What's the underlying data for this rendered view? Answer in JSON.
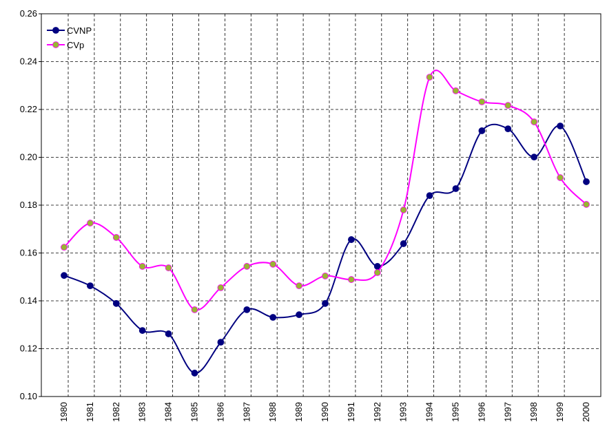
{
  "chart_data": {
    "type": "line",
    "categories": [
      "1980",
      "1981",
      "1982",
      "1983",
      "1984",
      "1985",
      "1986",
      "1987",
      "1988",
      "1989",
      "1990",
      "1991",
      "1992",
      "1993",
      "1994",
      "1995",
      "1996",
      "1997",
      "1998",
      "1999",
      "2000"
    ],
    "series": [
      {
        "name": "CVNP",
        "color": "#000080",
        "marker_color": "#000080",
        "values": [
          0.1506,
          0.1463,
          0.1389,
          0.1276,
          0.1262,
          0.1098,
          0.1227,
          0.1363,
          0.1331,
          0.1342,
          0.1389,
          0.1656,
          0.1544,
          0.1639,
          0.184,
          0.1869,
          0.2111,
          0.2119,
          0.2001,
          0.2131,
          0.1898
        ]
      },
      {
        "name": "CVp",
        "color": "#ff00ff",
        "marker_color": "#99b433",
        "values": [
          0.1624,
          0.1725,
          0.1665,
          0.1544,
          0.1538,
          0.1363,
          0.1455,
          0.1544,
          0.1553,
          0.1463,
          0.1504,
          0.1489,
          0.1518,
          0.178,
          0.2335,
          0.2278,
          0.2232,
          0.2217,
          0.2148,
          0.1915,
          0.1803
        ]
      }
    ],
    "ylim": [
      0.1,
      0.26
    ],
    "yticks": [
      {
        "value": 0.1,
        "label": "0.10"
      },
      0.12,
      0.14,
      0.16,
      0.18,
      {
        "value": 0.2,
        "label": "0.20"
      },
      0.22,
      0.24,
      0.26
    ],
    "grid": true,
    "smooth": true,
    "legend": "top-left"
  }
}
